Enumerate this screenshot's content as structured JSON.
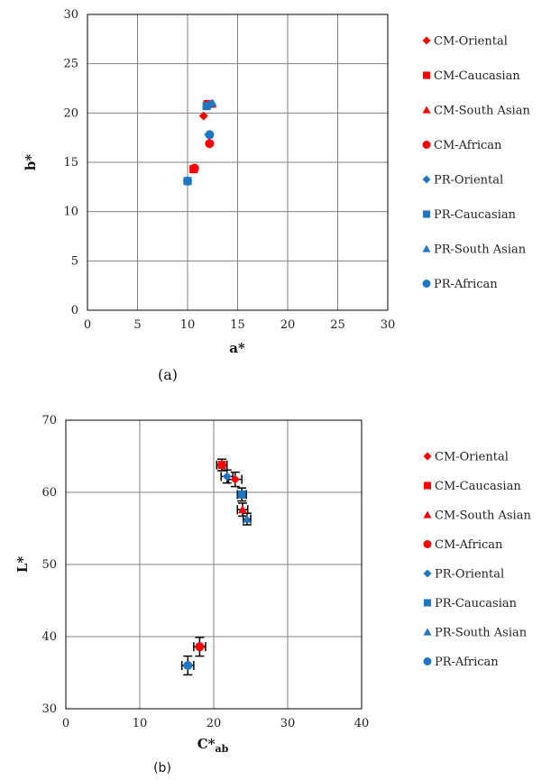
{
  "chart_data": [
    {
      "type": "scatter",
      "panel_label": "(a)",
      "xlabel": "a*",
      "ylabel": "b*",
      "xlim": [
        0,
        30
      ],
      "ylim": [
        0,
        30
      ],
      "xticks": [
        "0",
        "5",
        "10",
        "15",
        "20",
        "25",
        "30"
      ],
      "yticks": [
        "0",
        "5",
        "10",
        "15",
        "20",
        "25",
        "30"
      ],
      "grid": true,
      "legend_position": "right",
      "series": [
        {
          "name": "CM-Oriental",
          "marker": "diamond",
          "color": "#ff0000",
          "points": [
            {
              "x": 11.6,
              "y": 19.7
            },
            {
              "x": 10.6,
              "y": 14.4
            },
            {
              "x": 12.2,
              "y": 20.8
            }
          ]
        },
        {
          "name": "CM-Caucasian",
          "marker": "square",
          "color": "#ff0000",
          "points": [
            {
              "x": 12.0,
              "y": 20.9
            },
            {
              "x": 10.6,
              "y": 14.3
            }
          ]
        },
        {
          "name": "CM-South Asian",
          "marker": "triangle",
          "color": "#ff0000",
          "points": [
            {
              "x": 12.4,
              "y": 20.9
            }
          ]
        },
        {
          "name": "CM-African",
          "marker": "circle",
          "color": "#ff0000",
          "points": [
            {
              "x": 12.2,
              "y": 16.9
            },
            {
              "x": 10.7,
              "y": 14.4
            }
          ]
        },
        {
          "name": "PR-Oriental",
          "marker": "diamond",
          "color": "#1f77c4",
          "points": [
            {
              "x": 12.3,
              "y": 20.9
            },
            {
              "x": 12.1,
              "y": 17.8
            }
          ]
        },
        {
          "name": "PR-Caucasian",
          "marker": "square",
          "color": "#1f77c4",
          "points": [
            {
              "x": 11.9,
              "y": 20.7
            },
            {
              "x": 10.0,
              "y": 13.1
            }
          ]
        },
        {
          "name": "PR-South Asian",
          "marker": "triangle",
          "color": "#1f77c4",
          "points": [
            {
              "x": 12.5,
              "y": 21.0
            }
          ]
        },
        {
          "name": "PR-African",
          "marker": "circle",
          "color": "#1f77c4",
          "points": [
            {
              "x": 12.2,
              "y": 17.8
            },
            {
              "x": 10.0,
              "y": 13.1
            }
          ]
        }
      ]
    },
    {
      "type": "scatter",
      "panel_label": "(b)",
      "xlabel": "C*",
      "xlabel_sub": "ab",
      "ylabel": "L*",
      "xlim": [
        0,
        40
      ],
      "ylim": [
        30,
        70
      ],
      "xticks": [
        "0",
        "10",
        "20",
        "30",
        "40"
      ],
      "yticks": [
        "30",
        "40",
        "50",
        "60",
        "70"
      ],
      "grid": true,
      "legend_position": "right",
      "series": [
        {
          "name": "CM-Oriental",
          "marker": "diamond",
          "color": "#ff0000",
          "points": [
            {
              "x": 22.9,
              "y": 61.8,
              "xerr": 0.9,
              "yerr": 1.0
            }
          ]
        },
        {
          "name": "CM-Caucasian",
          "marker": "square",
          "color": "#ff0000",
          "points": [
            {
              "x": 21.1,
              "y": 63.8,
              "xerr": 0.7,
              "yerr": 0.8
            }
          ]
        },
        {
          "name": "CM-South Asian",
          "marker": "triangle",
          "color": "#ff0000",
          "points": [
            {
              "x": 23.9,
              "y": 57.6,
              "xerr": 0.7,
              "yerr": 0.9
            }
          ]
        },
        {
          "name": "CM-African",
          "marker": "circle",
          "color": "#ff0000",
          "points": [
            {
              "x": 18.1,
              "y": 38.6,
              "xerr": 0.8,
              "yerr": 1.3
            }
          ]
        },
        {
          "name": "PR-Oriental",
          "marker": "diamond",
          "color": "#1f77c4",
          "points": [
            {
              "x": 21.8,
              "y": 62.2,
              "xerr": 0.8,
              "yerr": 0.9
            }
          ]
        },
        {
          "name": "PR-Caucasian",
          "marker": "square",
          "color": "#1f77c4",
          "points": [
            {
              "x": 23.8,
              "y": 59.7,
              "xerr": 0.6,
              "yerr": 0.9
            }
          ]
        },
        {
          "name": "PR-South Asian",
          "marker": "triangle",
          "color": "#1f77c4",
          "points": [
            {
              "x": 24.5,
              "y": 56.3,
              "xerr": 0.5,
              "yerr": 0.8
            }
          ]
        },
        {
          "name": "PR-African",
          "marker": "circle",
          "color": "#1f77c4",
          "points": [
            {
              "x": 16.5,
              "y": 36.0,
              "xerr": 0.8,
              "yerr": 1.3
            }
          ]
        }
      ]
    }
  ]
}
